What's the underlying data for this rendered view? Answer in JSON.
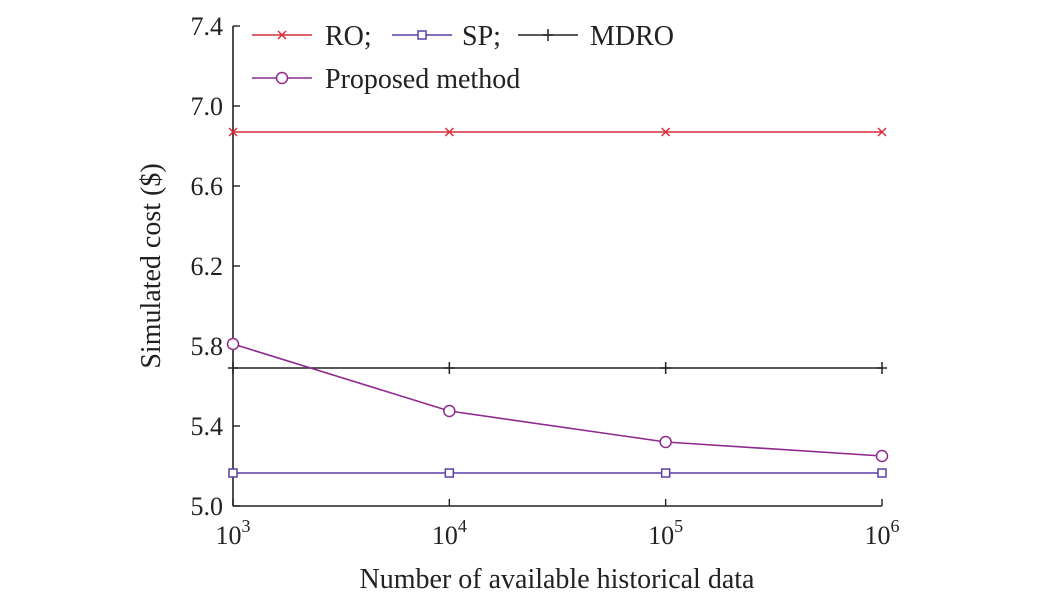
{
  "chart_data": {
    "type": "line",
    "xlabel": "Number of available historical data",
    "ylabel": "Simulated cost ($)",
    "x_scale": "log",
    "x": [
      1000,
      10000,
      100000,
      1000000
    ],
    "x_ticks": [
      {
        "base": "10",
        "exp": "3"
      },
      {
        "base": "10",
        "exp": "4"
      },
      {
        "base": "10",
        "exp": "5"
      },
      {
        "base": "10",
        "exp": "6"
      }
    ],
    "ylim": [
      5.0,
      7.4
    ],
    "y_ticks": [
      "5.0",
      "5.4",
      "5.8",
      "6.2",
      "6.6",
      "7.0",
      "7.4"
    ],
    "grid": false,
    "legend_position": "top-left",
    "series": [
      {
        "name": "RO;",
        "color": "#d62f3a",
        "marker": "x",
        "values": [
          6.87,
          6.87,
          6.87,
          6.87
        ]
      },
      {
        "name": "SP;",
        "color": "#5b3fa8",
        "marker": "square",
        "values": [
          5.165,
          5.165,
          5.165,
          5.165
        ]
      },
      {
        "name": "MDRO",
        "color": "#222222",
        "marker": "plus",
        "values": [
          5.69,
          5.69,
          5.69,
          5.69
        ]
      },
      {
        "name": "Proposed method",
        "color": "#8e2a8e",
        "marker": "circle",
        "values": [
          5.81,
          5.475,
          5.32,
          5.25
        ]
      }
    ]
  }
}
